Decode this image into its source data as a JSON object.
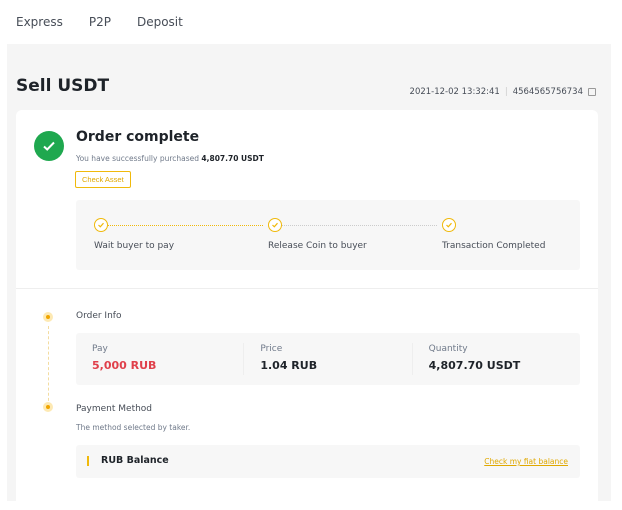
{
  "nav": {
    "tabs": [
      "Express",
      "P2P",
      "Deposit"
    ]
  },
  "page": {
    "title": "Sell USDT",
    "datetime": "2021-12-02 13:32:41",
    "separator": "|",
    "order_id": "4564565756734"
  },
  "status": {
    "title": "Order complete",
    "message": "You have successfully purchased",
    "amount": "4,807.70 USDT",
    "check_asset": "Check Asset"
  },
  "steps": [
    {
      "label": "Wait buyer to pay"
    },
    {
      "label": "Release Coin to buyer"
    },
    {
      "label": "Transaction Completed"
    }
  ],
  "order_info": {
    "title": "Order Info",
    "pay_label": "Pay",
    "pay_value": "5,000 RUB",
    "price_label": "Price",
    "price_value": "1.04 RUB",
    "quantity_label": "Quantity",
    "quantity_value": "4,807.70 USDT"
  },
  "payment": {
    "title": "Payment Method",
    "description": "The method selected by taker.",
    "method": "RUB Balance",
    "link": "Check  my fiat balance"
  },
  "colors": {
    "accent": "#f0b90b",
    "success": "#1fa84f",
    "pay": "#e0404b"
  }
}
